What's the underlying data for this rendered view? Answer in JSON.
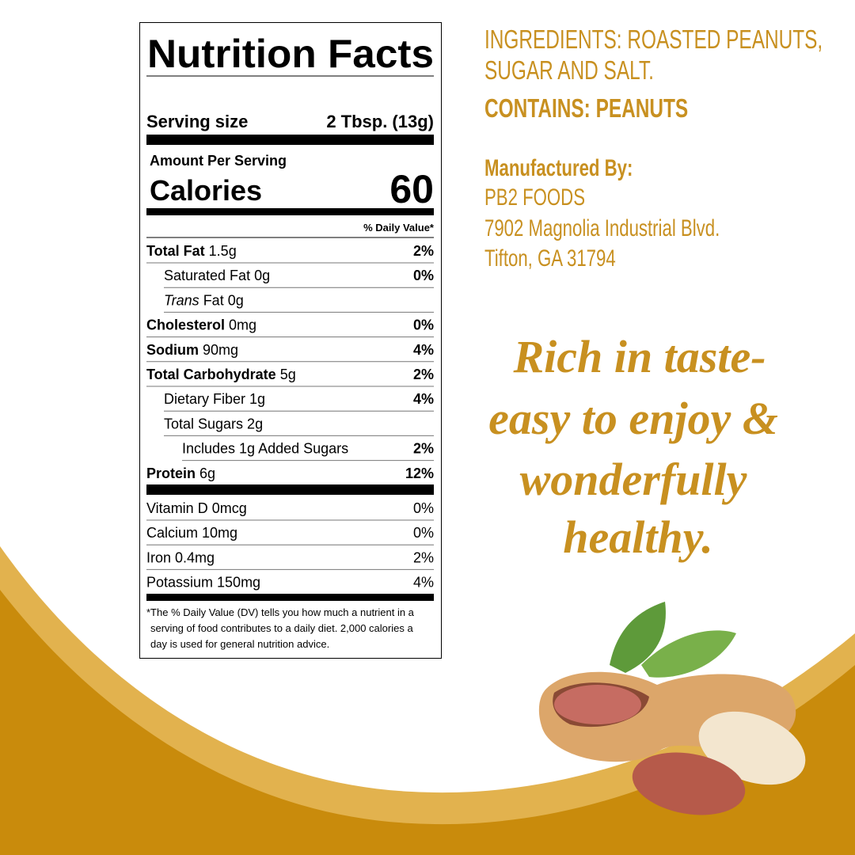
{
  "nutrition_label": {
    "title": "Nutrition Facts",
    "serving_label": "Serving size",
    "serving_value": "2 Tbsp. (13g)",
    "amount_per_serving": "Amount Per Serving",
    "calories_label": "Calories",
    "calories_value": "60",
    "daily_value_header": "% Daily Value*",
    "rows": [
      {
        "label": "Total Fat",
        "amount": "1.5g",
        "dv": "2%"
      },
      {
        "label": "Saturated Fat 0g",
        "dv": "0%"
      },
      {
        "label_italic": "Trans",
        "label": "Fat 0g"
      },
      {
        "label": "Cholesterol",
        "amount": "0mg",
        "dv": "0%"
      },
      {
        "label": "Sodium",
        "amount": "90mg",
        "dv": "4%"
      },
      {
        "label": "Total Carbohydrate",
        "amount": "5g",
        "dv": "2%"
      },
      {
        "label": "Dietary Fiber 1g",
        "dv": "4%"
      },
      {
        "label": "Total Sugars 2g"
      },
      {
        "label": "Includes 1g Added Sugars",
        "dv": "2%"
      },
      {
        "label": "Protein",
        "amount": "6g",
        "dv": "12%"
      }
    ],
    "vitamins": [
      {
        "label": "Vitamin D 0mcg",
        "dv": "0%"
      },
      {
        "label": "Calcium 10mg",
        "dv": "0%"
      },
      {
        "label": "Iron 0.4mg",
        "dv": "2%"
      },
      {
        "label": "Potassium 150mg",
        "dv": "4%"
      }
    ],
    "footnote": [
      "*The % Daily Value (DV) tells you how much a nutrient in a",
      "serving of food contributes to a daily diet. 2,000 calories a",
      "day is used for general nutrition advice."
    ]
  },
  "ingredients": [
    "INGREDIENTS: ROASTED PEANUTS,",
    "SUGAR AND SALT."
  ],
  "contains": "CONTAINS: PEANUTS",
  "manufacturer": {
    "heading": "Manufactured By:",
    "lines": [
      "PB2 FOODS",
      "7902 Magnolia Industrial Blvd.",
      "Tifton, GA 31794"
    ]
  },
  "tagline": [
    "Rich in taste-",
    "easy to enjoy &",
    "wonderfully",
    "healthy."
  ]
}
